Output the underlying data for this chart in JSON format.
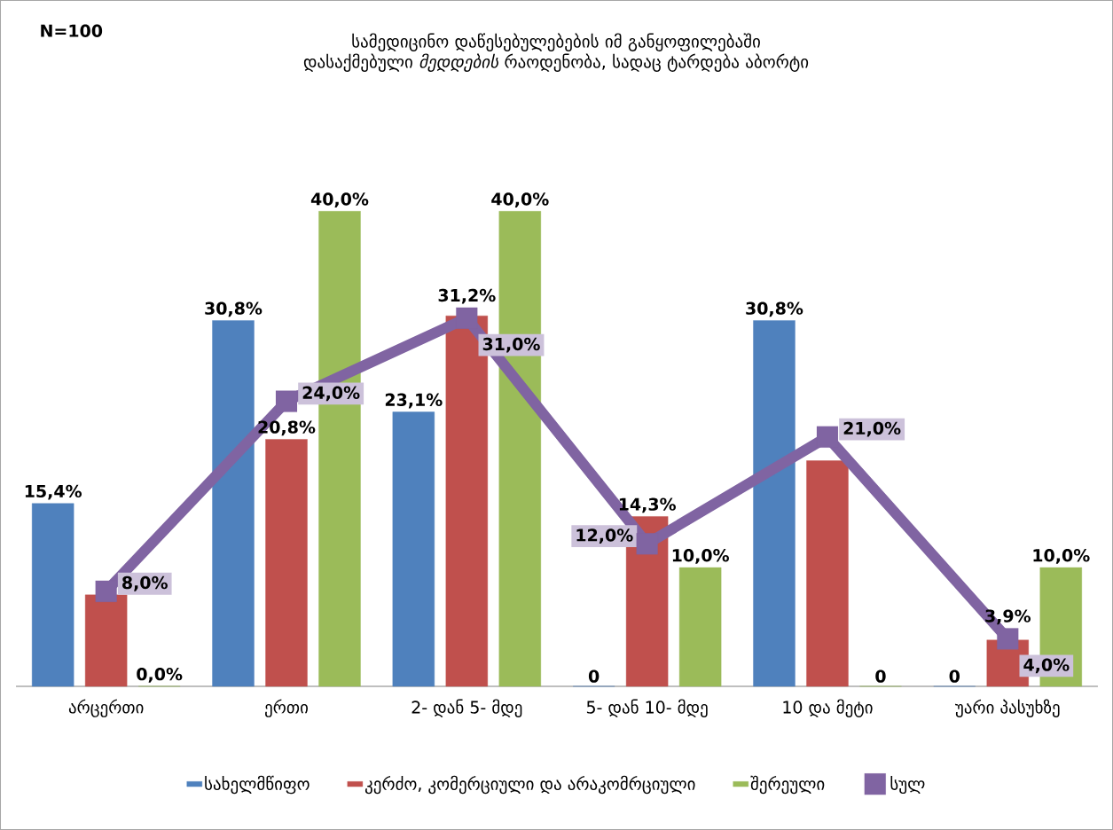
{
  "chart_data": {
    "type": "bar",
    "title": "სამედიცინო დაწესებულებების იმ განყოფილებაში დასაქმებული *მედდების* რაოდენობა, სადაც ტარდება აბორტი",
    "annotations": [
      "N=100"
    ],
    "categories": [
      "არცერთი",
      "ერთი",
      "2- დან 5- მდე",
      "5- დან 10- მდე",
      "10 და მეტი",
      "უარი პასუხზე"
    ],
    "series": [
      {
        "name": "სახელმწიფო",
        "color": "#4f81bd",
        "values": [
          15.4,
          30.8,
          23.1,
          0,
          30.8,
          0
        ],
        "value_labels": [
          "15,4%",
          "30,8%",
          "23,1%",
          "0",
          "30,8%",
          "0"
        ]
      },
      {
        "name": "კერძო, კომერციული და არაკომრციული",
        "color": "#c0504d",
        "values": [
          7.7,
          20.8,
          31.2,
          14.3,
          19.0,
          3.9
        ],
        "value_labels": [
          null,
          "20,8%",
          "31,2%",
          "14,3%",
          null,
          "3,9%"
        ]
      },
      {
        "name": "შერეული",
        "color": "#9bbb59",
        "values": [
          0,
          40,
          40,
          10,
          0,
          10
        ],
        "value_labels": [
          "0,0%",
          "40,0%",
          "40,0%",
          "10,0%",
          "0",
          "10,0%"
        ]
      },
      {
        "name": "სულ",
        "type": "line",
        "color": "#8064a2",
        "marker": "square",
        "values": [
          8,
          24,
          31,
          12,
          21,
          4
        ],
        "value_labels": [
          "8,0%",
          "24,0%",
          "31,0%",
          "12,0%",
          "21,0%",
          "4,0%"
        ]
      }
    ],
    "legend": "bottom"
  }
}
